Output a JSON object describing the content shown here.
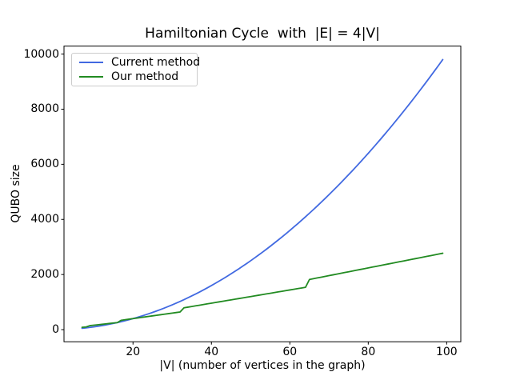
{
  "figure": {
    "title": "Hamiltonian Cycle  with  |E| = 4|V|",
    "xlabel": "|V| (number of vertices in the graph)",
    "ylabel": "QUBO size"
  },
  "legend": {
    "entries": [
      {
        "label": "Current method",
        "color": "#4169e1"
      },
      {
        "label": "Our method",
        "color": "#228b22"
      }
    ]
  },
  "chart_data": {
    "type": "line",
    "title": "Hamiltonian Cycle  with  |E| = 4|V|",
    "xlabel": "|V| (number of vertices in the graph)",
    "ylabel": "QUBO size",
    "grid": false,
    "legend_position": "upper left",
    "xlim": [
      2.4,
      103.6
    ],
    "ylim": [
      -440,
      10290
    ],
    "xticks": [
      20,
      40,
      60,
      80,
      100
    ],
    "yticks": [
      0,
      2000,
      4000,
      6000,
      8000,
      10000
    ],
    "x": [
      7,
      8,
      9,
      10,
      11,
      12,
      13,
      14,
      15,
      16,
      17,
      18,
      19,
      20,
      21,
      22,
      23,
      24,
      25,
      26,
      27,
      28,
      29,
      30,
      31,
      32,
      33,
      34,
      35,
      36,
      37,
      38,
      39,
      40,
      41,
      42,
      43,
      44,
      45,
      46,
      47,
      48,
      49,
      50,
      51,
      52,
      53,
      54,
      55,
      56,
      57,
      58,
      59,
      60,
      61,
      62,
      63,
      64,
      65,
      66,
      67,
      68,
      69,
      70,
      71,
      72,
      73,
      74,
      75,
      76,
      77,
      78,
      79,
      80,
      81,
      82,
      83,
      84,
      85,
      86,
      87,
      88,
      89,
      90,
      91,
      92,
      93,
      94,
      95,
      96,
      97,
      98,
      99
    ],
    "series": [
      {
        "name": "Current method",
        "color": "#4169e1",
        "values": [
          49,
          64,
          81,
          100,
          121,
          144,
          169,
          196,
          225,
          256,
          289,
          324,
          361,
          400,
          441,
          484,
          529,
          576,
          625,
          676,
          729,
          784,
          841,
          900,
          961,
          1024,
          1089,
          1156,
          1225,
          1296,
          1369,
          1444,
          1521,
          1600,
          1681,
          1764,
          1849,
          1936,
          2025,
          2116,
          2209,
          2304,
          2401,
          2500,
          2601,
          2704,
          2809,
          2916,
          3025,
          3136,
          3249,
          3364,
          3481,
          3600,
          3721,
          3844,
          3969,
          4096,
          4225,
          4356,
          4489,
          4624,
          4761,
          4900,
          5041,
          5184,
          5329,
          5476,
          5625,
          5776,
          5929,
          6084,
          6241,
          6400,
          6561,
          6724,
          6889,
          7056,
          7225,
          7396,
          7569,
          7744,
          7921,
          8100,
          8281,
          8464,
          8649,
          8836,
          9025,
          9216,
          9409,
          9604,
          9801
        ]
      },
      {
        "name": "Our method",
        "color": "#228b22",
        "values": [
          84,
          96,
          144,
          160,
          176,
          192,
          208,
          224,
          240,
          256,
          340,
          360,
          380,
          400,
          420,
          440,
          460,
          480,
          500,
          520,
          540,
          560,
          580,
          600,
          620,
          640,
          792,
          816,
          840,
          864,
          888,
          912,
          936,
          960,
          984,
          1008,
          1032,
          1056,
          1080,
          1104,
          1128,
          1152,
          1176,
          1200,
          1224,
          1248,
          1272,
          1296,
          1320,
          1344,
          1368,
          1392,
          1416,
          1440,
          1464,
          1488,
          1512,
          1536,
          1820,
          1848,
          1876,
          1904,
          1932,
          1960,
          1988,
          2016,
          2044,
          2072,
          2100,
          2128,
          2156,
          2184,
          2212,
          2240,
          2268,
          2296,
          2324,
          2352,
          2380,
          2408,
          2436,
          2464,
          2492,
          2520,
          2548,
          2576,
          2604,
          2632,
          2660,
          2688,
          2716,
          2744,
          2772
        ]
      }
    ]
  }
}
